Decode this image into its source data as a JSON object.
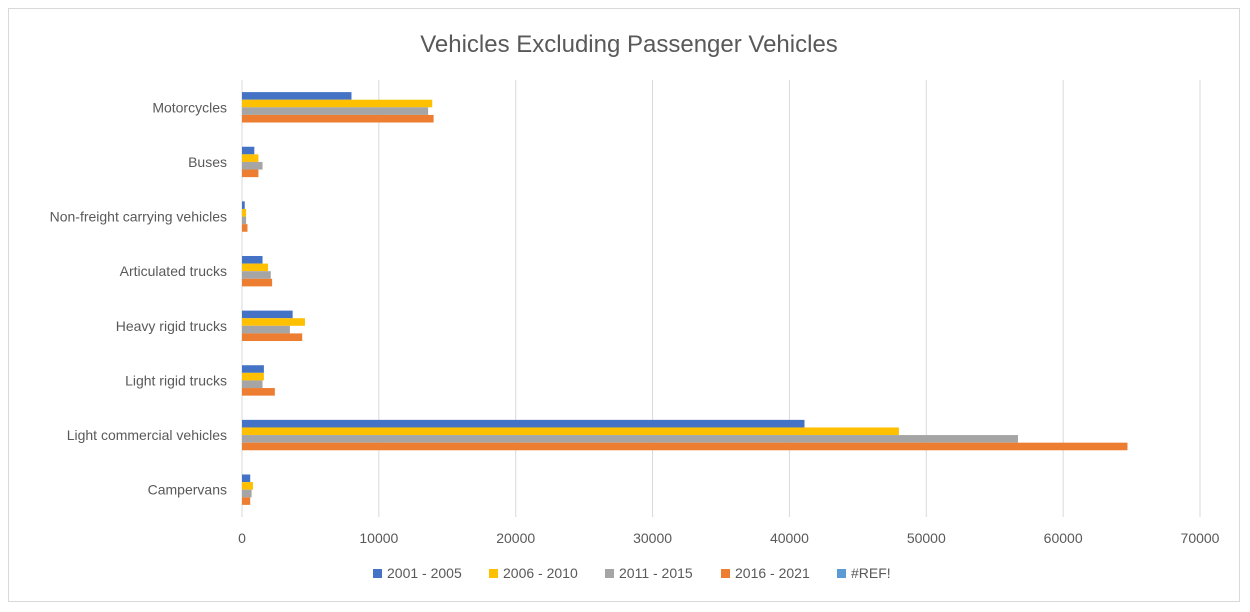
{
  "chart_data": {
    "type": "bar",
    "orientation": "horizontal",
    "title": "Vehicles Excluding Passenger Vehicles",
    "xlabel": "",
    "ylabel": "",
    "xlim": [
      0,
      70000
    ],
    "x_ticks": [
      0,
      10000,
      20000,
      30000,
      40000,
      50000,
      60000,
      70000
    ],
    "grid": true,
    "legend_position": "bottom",
    "categories": [
      "Motorcycles",
      "Buses",
      "Non-freight carrying vehicles",
      "Articulated trucks",
      "Heavy rigid trucks",
      "Light rigid trucks",
      "Light commercial vehicles",
      "Campervans"
    ],
    "series": [
      {
        "name": "2001 - 2005",
        "color": "#4472c4",
        "values": [
          8000,
          900,
          200,
          1500,
          3700,
          1600,
          41100,
          600
        ]
      },
      {
        "name": "2006 - 2010",
        "color": "#ffc000",
        "values": [
          13900,
          1200,
          300,
          1900,
          4600,
          1600,
          48000,
          800
        ]
      },
      {
        "name": "2011 - 2015",
        "color": "#a5a5a5",
        "values": [
          13600,
          1500,
          300,
          2100,
          3500,
          1500,
          56700,
          700
        ]
      },
      {
        "name": "2016 - 2021",
        "color": "#ed7d31",
        "values": [
          14000,
          1200,
          400,
          2200,
          4400,
          2400,
          64700,
          600
        ]
      },
      {
        "name": "#REF!",
        "color": "#5b9bd5",
        "values": [
          null,
          null,
          null,
          null,
          null,
          null,
          null,
          null
        ]
      }
    ]
  }
}
